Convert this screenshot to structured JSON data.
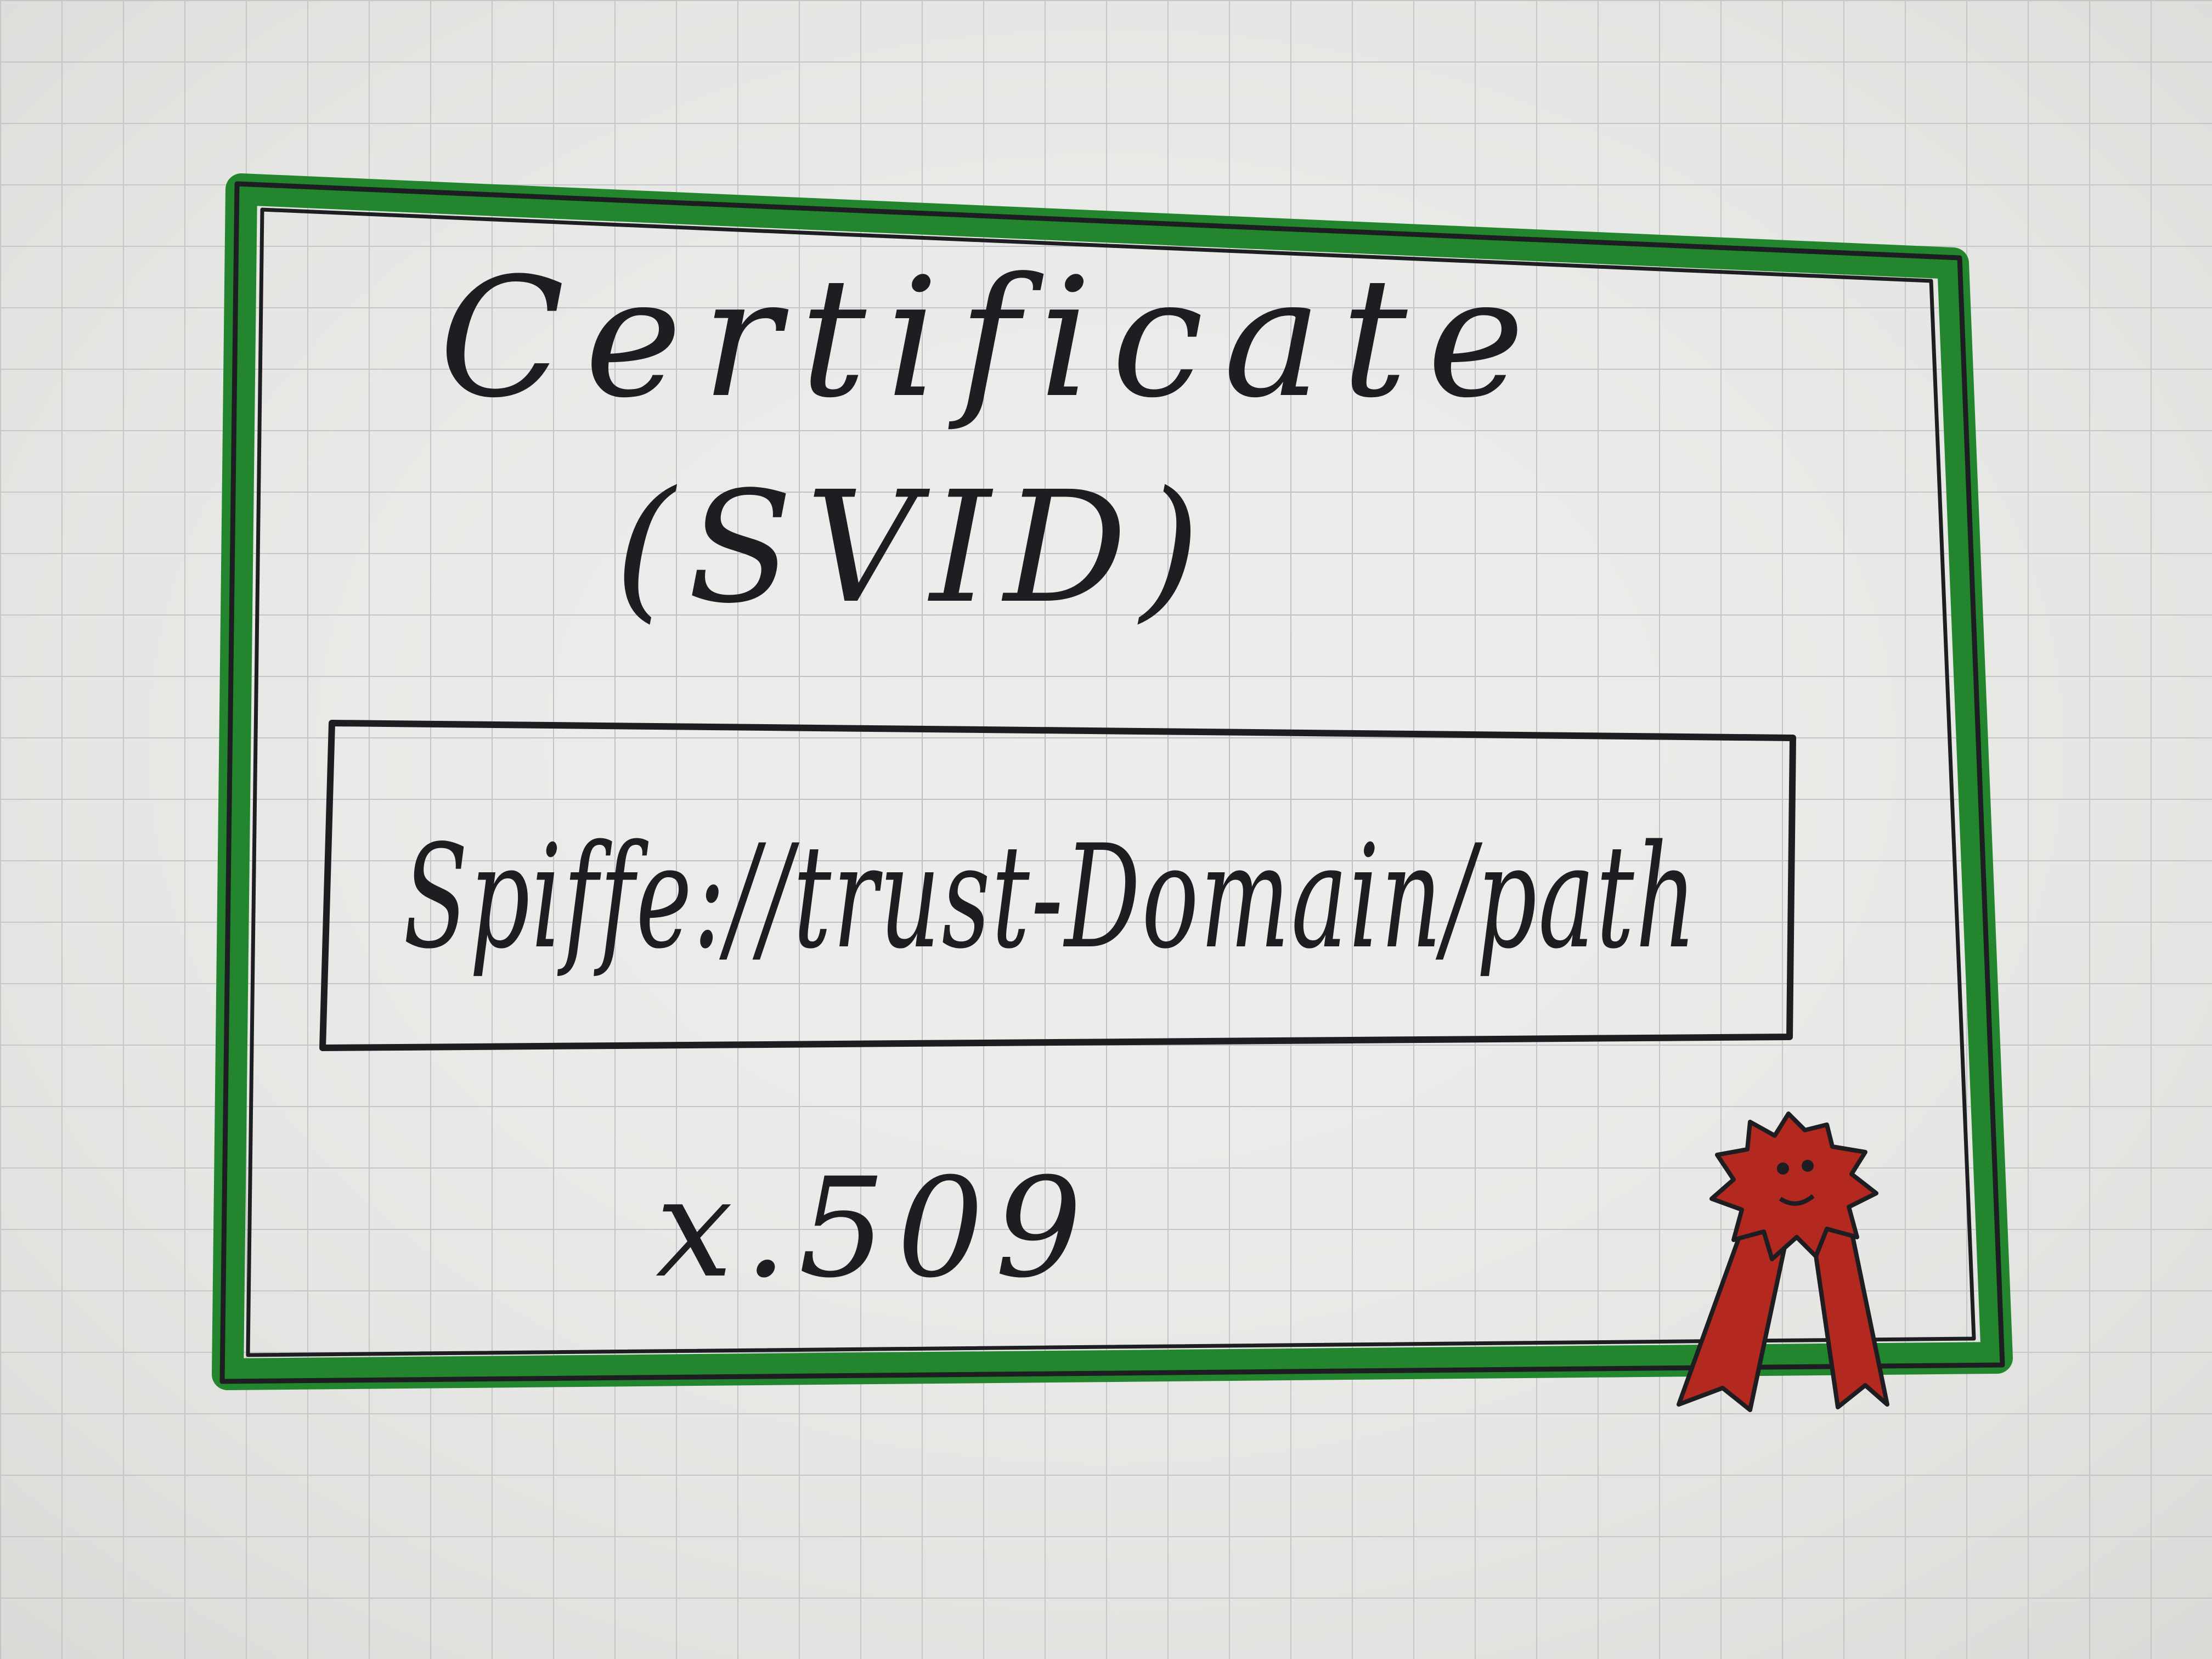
{
  "certificate": {
    "title": "Certificate",
    "subtitle": "(SVID)",
    "id_uri": "Spiffe://trust-Domain/path",
    "format": "x.509"
  },
  "colors": {
    "paper": "#e9e9e6",
    "grid": "#b9bcc0",
    "border_green": "#23862f",
    "ink": "#1e1e22",
    "seal_red": "#b3281f"
  },
  "icons": {
    "seal": "award-seal-icon"
  }
}
